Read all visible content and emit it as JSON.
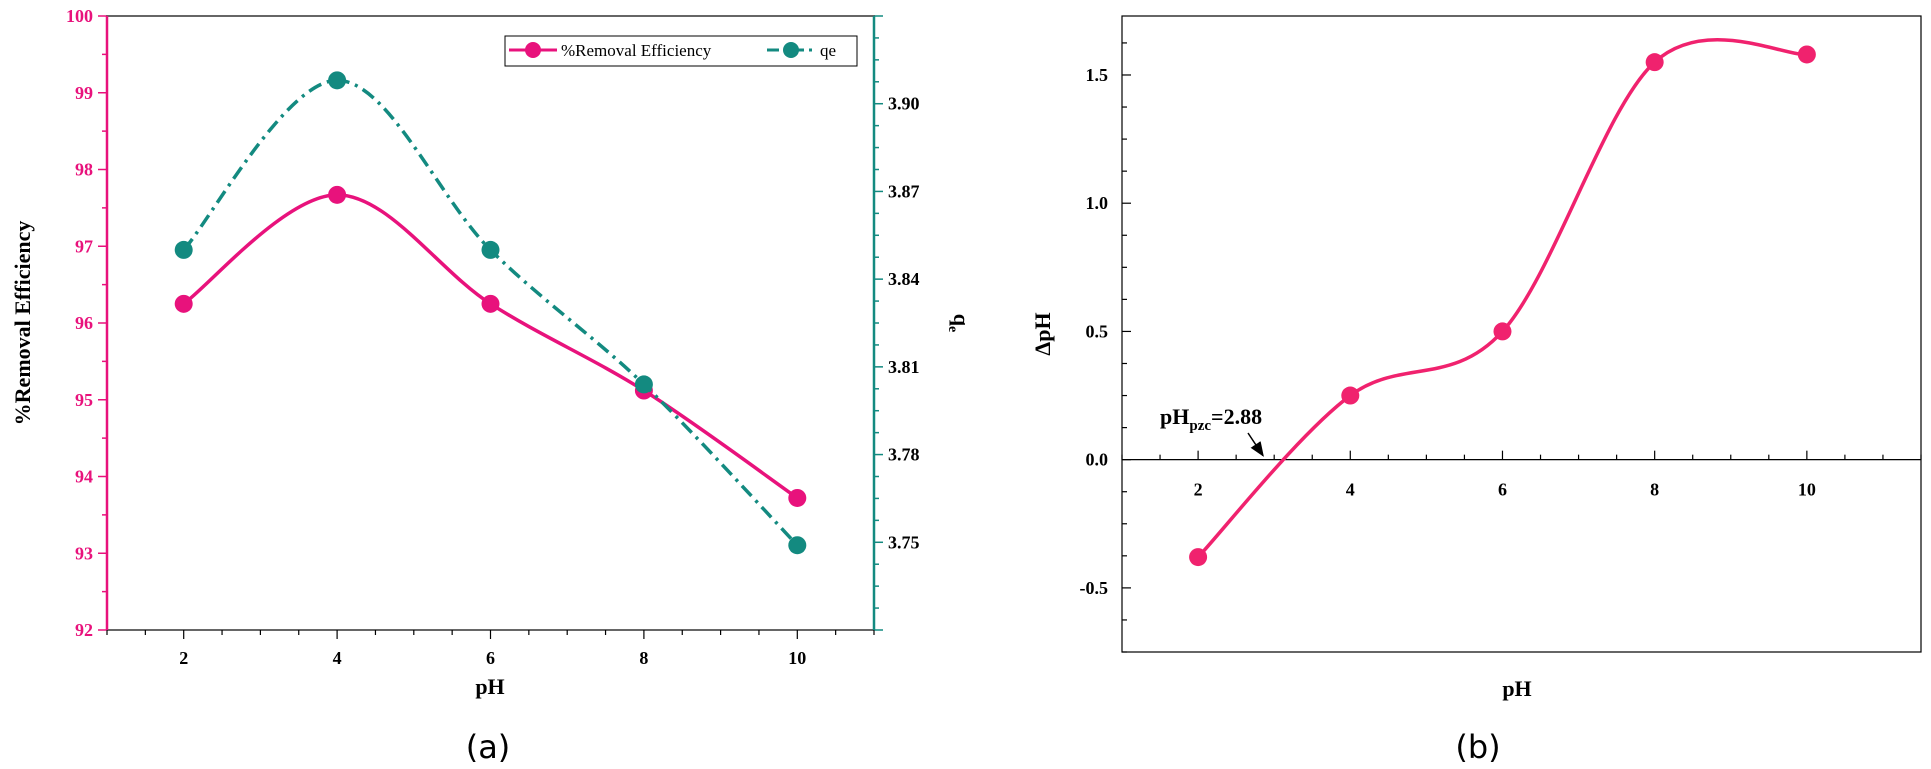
{
  "chart_data": [
    {
      "type": "line",
      "panel_label": "(a)",
      "x": [
        2,
        4,
        6,
        8,
        10
      ],
      "xlabel": "pH",
      "xlim": [
        1,
        11
      ],
      "xticks": [
        2,
        4,
        6,
        8,
        10
      ],
      "ylabel_left": "%Removal Efficiency",
      "ylim_left": [
        92,
        100
      ],
      "yticks_left": [
        92,
        93,
        94,
        95,
        96,
        97,
        98,
        99,
        100
      ],
      "ylabel_right": "q",
      "ylabel_right_sub": "e",
      "ylim_right": [
        3.72,
        3.93
      ],
      "yticks_right": [
        3.75,
        3.78,
        3.81,
        3.84,
        3.87,
        3.9
      ],
      "left_axis_color": "#e8127c",
      "right_axis_color": "#138a80",
      "legend_position": "top-right",
      "series": [
        {
          "name": "%Removal Efficiency",
          "axis": "left",
          "color": "#e8127c",
          "style": "solid",
          "values": [
            96.25,
            97.67,
            96.25,
            95.12,
            93.72
          ]
        },
        {
          "name": "qe",
          "axis": "right",
          "color": "#138a80",
          "style": "dash-dot",
          "values": [
            3.85,
            3.908,
            3.85,
            3.804,
            3.749
          ]
        }
      ]
    },
    {
      "type": "line",
      "panel_label": "(b)",
      "x": [
        2,
        4,
        6,
        8,
        10
      ],
      "xlabel": "pH",
      "xlim": [
        1,
        11.5
      ],
      "xticks": [
        2,
        4,
        6,
        8,
        10
      ],
      "ylabel": "ΔpH",
      "ylim": [
        -0.75,
        1.73
      ],
      "yticks": [
        -0.5,
        0.0,
        0.5,
        1.0,
        1.5
      ],
      "ytick_labels": [
        "-0.5",
        "0.0",
        "0.5",
        "1.0",
        "1.5"
      ],
      "series": [
        {
          "name": "",
          "color": "#f0226e",
          "style": "solid",
          "values": [
            -0.38,
            0.25,
            0.5,
            1.55,
            1.58
          ]
        }
      ],
      "annotation": {
        "text_main": "pH",
        "text_sub": "pzc",
        "text_tail": "=2.88",
        "x": 2.88,
        "y": 0.0
      }
    }
  ]
}
